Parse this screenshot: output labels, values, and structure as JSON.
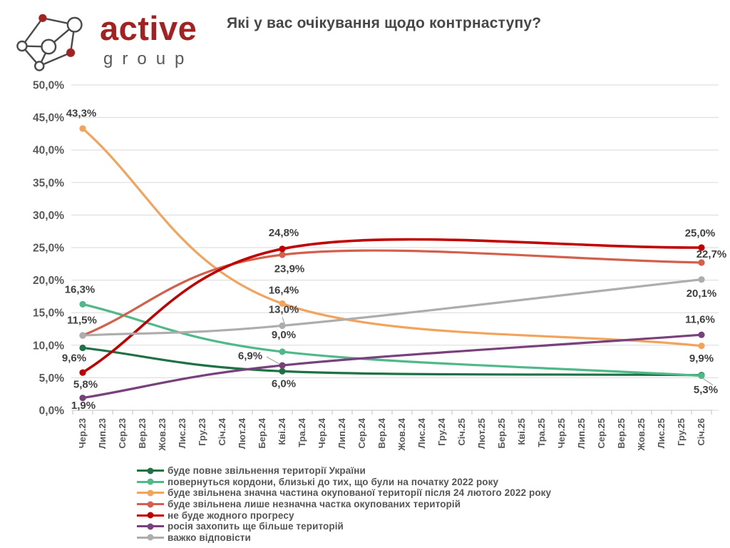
{
  "header": {
    "logo_brand": "active",
    "logo_sub": "group",
    "title": "Які у вас очікування щодо контрнаступу?"
  },
  "chart_data": {
    "type": "line",
    "title": "Які у вас очікування щодо контрнаступу?",
    "grid": "horizontal",
    "legend_position": "bottom-left",
    "x_tick_labels": [
      "Чер.23",
      "Лип.23",
      "Сер.23",
      "Вер.23",
      "Жов.23",
      "Лис.23",
      "Гру.23",
      "Січ.24",
      "Лют.24",
      "Бер.24",
      "Кві.24",
      "Тра.24",
      "Чер.24",
      "Лип.24",
      "Сер.24",
      "Вер.24",
      "Жов.24",
      "Лис.24",
      "Гру.24",
      "Січ.25",
      "Лют.25",
      "Бер.25",
      "Кві.25",
      "Тра.25",
      "Чер.25",
      "Лип.25",
      "Сер.25",
      "Вер.25",
      "Жов.25",
      "Лис.25",
      "Гру.25",
      "Січ.26"
    ],
    "survey_wave_labels": [
      "Чер.23",
      "Кві.24",
      "Січ.26"
    ],
    "wave_x_indices": [
      0,
      10,
      31
    ],
    "y_axis": {
      "min": 0,
      "max": 50,
      "step": 5,
      "tick_labels": [
        "0,0%",
        "5,0%",
        "10,0%",
        "15,0%",
        "20,0%",
        "25,0%",
        "30,0%",
        "35,0%",
        "40,0%",
        "45,0%",
        "50,0%"
      ]
    },
    "series": [
      {
        "name": "буде повне звільнення території України",
        "color": "#1E7145",
        "values": [
          9.6,
          6.0,
          5.4
        ],
        "point_labels": [
          "9,6%",
          "6,0%",
          ""
        ]
      },
      {
        "name": "повернуться кордони, близькі до тих, що були на початку 2022 року",
        "color": "#4FB98A",
        "values": [
          16.3,
          9.0,
          5.3
        ],
        "point_labels": [
          "16,3%",
          "9,0%",
          "5,3%"
        ]
      },
      {
        "name": "буде звільнена значна частина окупованої території після 24 лютого 2022 року",
        "color": "#F2A45C",
        "values": [
          43.3,
          16.4,
          9.9
        ],
        "point_labels": [
          "43,3%",
          "16,4%",
          "9,9%"
        ]
      },
      {
        "name": "буде звільнена лише незначна частка окупованих територій",
        "color": "#D2604D",
        "values": [
          11.5,
          23.9,
          22.7
        ],
        "point_labels": [
          "",
          "23,9%",
          "22,7%"
        ]
      },
      {
        "name": "не буде жодного прогресу",
        "color": "#C00000",
        "values": [
          5.8,
          24.8,
          25.0
        ],
        "point_labels": [
          "5,8%",
          "24,8%",
          "25,0%"
        ]
      },
      {
        "name": "росія захопить ще більше територій",
        "color": "#78417C",
        "values": [
          1.9,
          6.9,
          11.6
        ],
        "point_labels": [
          "1,9%",
          "6,9%",
          "11,6%"
        ]
      },
      {
        "name": "важко відповісти",
        "color": "#ADADAD",
        "values": [
          11.5,
          13.0,
          20.1
        ],
        "point_labels": [
          "11,5%",
          "13,0%",
          "20,1%"
        ]
      }
    ]
  }
}
